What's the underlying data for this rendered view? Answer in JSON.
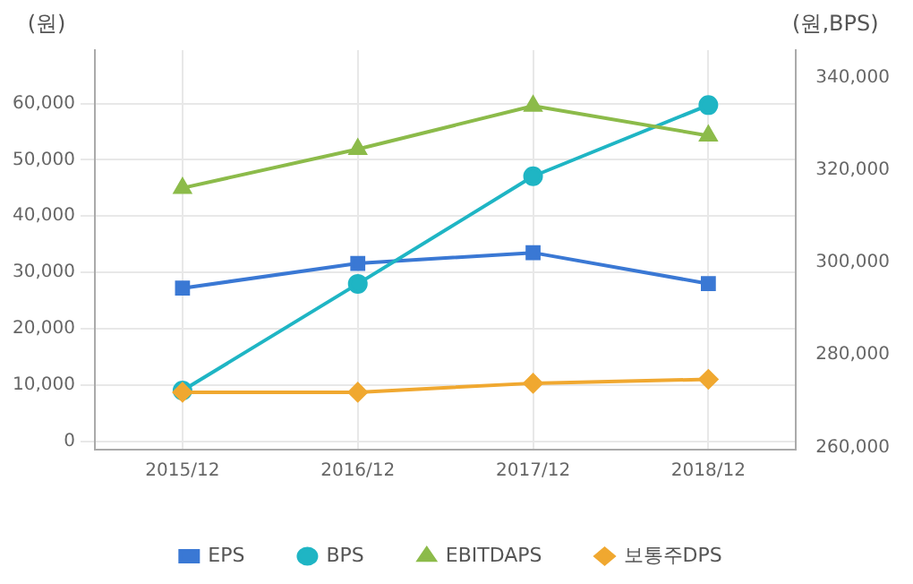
{
  "chart_data": {
    "type": "line",
    "ylabel": "(원)",
    "y2label": "(원,BPS)",
    "categories": [
      "2015/12",
      "2016/12",
      "2017/12",
      "2018/12"
    ],
    "series": [
      {
        "name": "EPS",
        "color": "#3a78d4",
        "marker": "square",
        "values": [
          27200,
          31600,
          33500,
          28000
        ]
      },
      {
        "name": "BPS",
        "color": "#1fb5c4",
        "marker": "circle",
        "axis": "y2",
        "values": [
          272300,
          295400,
          318700,
          334100
        ]
      },
      {
        "name": "EBITDAPS",
        "color": "#8cbb4a",
        "marker": "triangle",
        "values": [
          45000,
          51900,
          59600,
          54300
        ]
      },
      {
        "name": "보통주DPS",
        "color": "#f0a830",
        "marker": "diamond",
        "values": [
          8700,
          8700,
          10300,
          11000
        ]
      }
    ],
    "ylim": [
      -1500,
      69500
    ],
    "yticks": [
      {
        "value": 0,
        "label": "0"
      },
      {
        "value": 10000,
        "label": "10,000"
      },
      {
        "value": 20000,
        "label": "20,000"
      },
      {
        "value": 30000,
        "label": "30,000"
      },
      {
        "value": 40000,
        "label": "40,000"
      },
      {
        "value": 50000,
        "label": "50,000"
      },
      {
        "value": 60000,
        "label": "60,000"
      }
    ],
    "y2lim": [
      259500,
      346000
    ],
    "y2ticks": [
      {
        "value": 260000,
        "label": "260,000"
      },
      {
        "value": 280000,
        "label": "280,000"
      },
      {
        "value": 300000,
        "label": "300,000"
      },
      {
        "value": 320000,
        "label": "320,000"
      },
      {
        "value": 340000,
        "label": "340,000"
      }
    ],
    "grid": true,
    "legend": "bottom",
    "line_style": "solid"
  }
}
